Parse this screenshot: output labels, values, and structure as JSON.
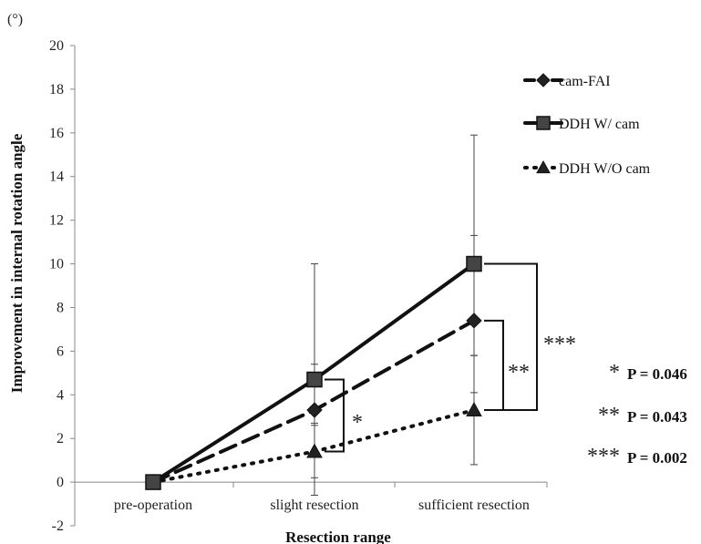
{
  "chart_data": {
    "type": "line",
    "title": "",
    "xlabel": "Resection range",
    "ylabel": "Improvement in internal rotation angle",
    "unit_label": "(°)",
    "categories": [
      "pre-operation",
      "slight resection",
      "sufficient resection"
    ],
    "ylim": [
      -2,
      20
    ],
    "yticks": [
      -2,
      0,
      2,
      4,
      6,
      8,
      10,
      12,
      14,
      16,
      18,
      20
    ],
    "grid": false,
    "legend_position": "top-right",
    "series": [
      {
        "name": "cam-FAI",
        "values": [
          0,
          3.3,
          7.4
        ],
        "err_low": [
          0,
          2.7,
          5.8
        ],
        "err_high": [
          0,
          5.4,
          11.3
        ],
        "line_style": "dashed",
        "marker": "diamond",
        "color": "#111111"
      },
      {
        "name": "DDH W/ cam",
        "values": [
          0,
          4.7,
          10
        ],
        "err_low": [
          0,
          -0.6,
          4.1
        ],
        "err_high": [
          0,
          10,
          15.9
        ],
        "line_style": "solid",
        "marker": "square",
        "color": "#111111"
      },
      {
        "name": "DDH W/O cam",
        "values": [
          0,
          1.4,
          3.3
        ],
        "err_low": [
          0,
          0.2,
          0.8
        ],
        "err_high": [
          0,
          2.6,
          5.8
        ],
        "line_style": "dotted",
        "marker": "triangle",
        "color": "#111111"
      }
    ],
    "significance": [
      {
        "label": "*",
        "category": "slight resection",
        "from_series": "DDH W/ cam",
        "to_series": "DDH W/O cam"
      },
      {
        "label": "**",
        "category": "sufficient resection",
        "from_series": "cam-FAI",
        "to_series": "DDH W/O cam"
      },
      {
        "label": "***",
        "category": "sufficient resection",
        "from_series": "DDH W/ cam",
        "to_series": "DDH W/O cam"
      }
    ],
    "pvalues": [
      {
        "stars": "*",
        "text": "P = 0.046"
      },
      {
        "stars": "**",
        "text": "P = 0.043"
      },
      {
        "stars": "***",
        "text": "P = 0.002"
      }
    ]
  }
}
